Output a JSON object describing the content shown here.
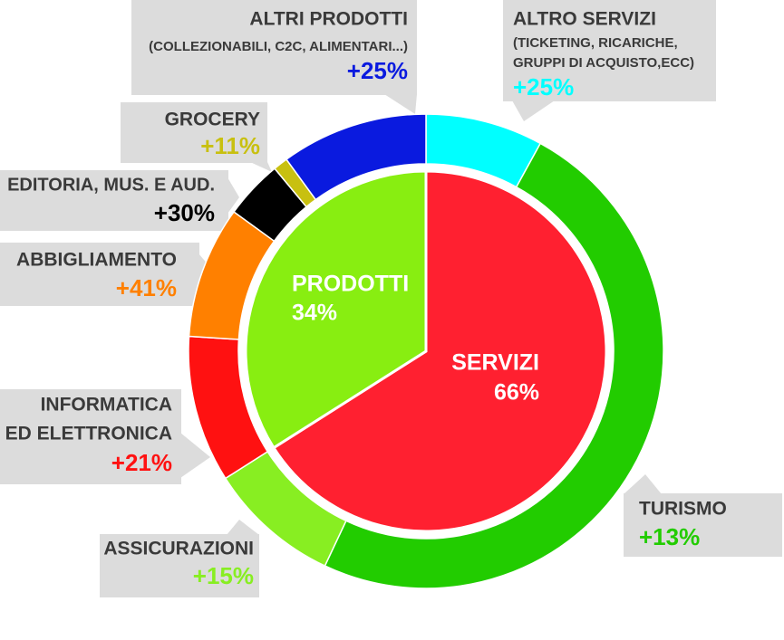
{
  "chart_data": {
    "type": "donut",
    "inner": {
      "categories": [
        "PRODOTTI",
        "SERVIZI"
      ],
      "values": [
        34,
        66
      ],
      "value_labels": [
        "34%",
        "66%"
      ],
      "colors": [
        "#88ee11",
        "#ff2030"
      ]
    },
    "outer": {
      "labels": [
        [
          "ALTRO SERVIZI",
          "(TICKETING, RICARICHE,",
          "GRUPPI DI ACQUISTO,ECC)"
        ],
        [
          "TURISMO"
        ],
        [
          "ASSICURAZIONI"
        ],
        [
          "INFORMATICA",
          "ED ELETTRONICA"
        ],
        [
          "ABBIGLIAMENTO"
        ],
        [
          "EDITORIA, MUS. E AUD."
        ],
        [
          "GROCERY"
        ],
        [
          "ALTRI PRODOTTI",
          "(COLLEZIONABILI, C2C, ALIMENTARI...)"
        ]
      ],
      "values": [
        8,
        49,
        9,
        10,
        9,
        4,
        1,
        10
      ],
      "growth_labels": [
        "+25%",
        "+13%",
        "+15%",
        "+21%",
        "+41%",
        "+30%",
        "+11%",
        "+25%"
      ],
      "colors": [
        "#00ffff",
        "#22cc00",
        "#88ee22",
        "#ff1111",
        "#ff8000",
        "#000000",
        "#c8c010",
        "#0a1adf"
      ]
    }
  }
}
